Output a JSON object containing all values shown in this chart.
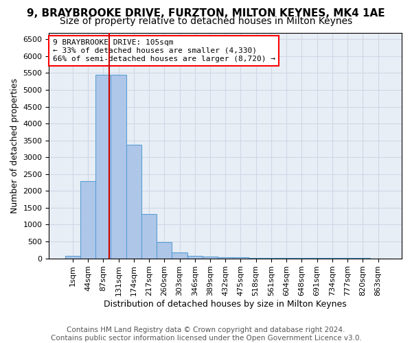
{
  "title": "9, BRAYBROOKE DRIVE, FURZTON, MILTON KEYNES, MK4 1AE",
  "subtitle": "Size of property relative to detached houses in Milton Keynes",
  "xlabel": "Distribution of detached houses by size in Milton Keynes",
  "ylabel": "Number of detached properties",
  "footer_line1": "Contains HM Land Registry data © Crown copyright and database right 2024.",
  "footer_line2": "Contains public sector information licensed under the Open Government Licence v3.0.",
  "bin_labels": [
    "1sqm",
    "44sqm",
    "87sqm",
    "131sqm",
    "174sqm",
    "217sqm",
    "260sqm",
    "303sqm",
    "346sqm",
    "389sqm",
    "432sqm",
    "475sqm",
    "518sqm",
    "561sqm",
    "604sqm",
    "648sqm",
    "691sqm",
    "734sqm",
    "777sqm",
    "820sqm",
    "863sqm"
  ],
  "bar_heights": [
    70,
    2300,
    5450,
    5450,
    3380,
    1310,
    480,
    175,
    70,
    55,
    40,
    30,
    20,
    15,
    10,
    8,
    5,
    4,
    3,
    2,
    1
  ],
  "bar_color": "#aec6e8",
  "bar_edge_color": "#5a9fd4",
  "grid_color": "#d0d8e8",
  "property_label": "9 BRAYBROOKE DRIVE: 105sqm",
  "annotation_line1": "← 33% of detached houses are smaller (4,330)",
  "annotation_line2": "66% of semi-detached houses are larger (8,720) →",
  "red_line_color": "#cc0000",
  "ylim": [
    0,
    6700
  ],
  "yticks": [
    0,
    500,
    1000,
    1500,
    2000,
    2500,
    3000,
    3500,
    4000,
    4500,
    5000,
    5500,
    6000,
    6500
  ],
  "title_fontsize": 11,
  "subtitle_fontsize": 10,
  "axis_label_fontsize": 9,
  "tick_fontsize": 8,
  "annotation_fontsize": 8,
  "footer_fontsize": 7.5
}
